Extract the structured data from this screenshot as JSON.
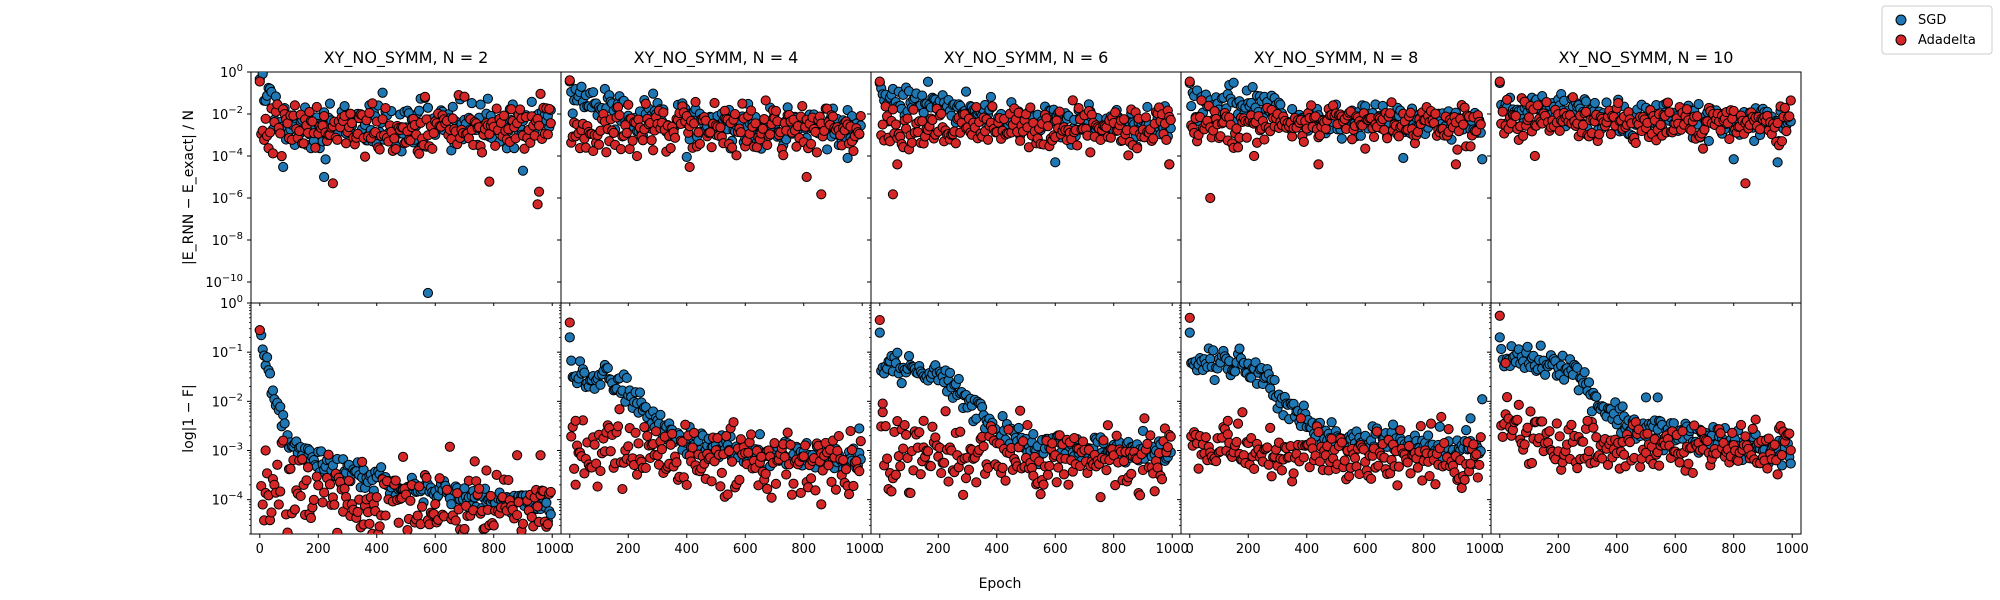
{
  "figure": {
    "xlabel": "Epoch",
    "legend": {
      "placement": "top-right",
      "items": [
        {
          "name": "SGD",
          "color": "#1f77b4"
        },
        {
          "name": "Adadelta",
          "color": "#d62728"
        }
      ]
    }
  },
  "chart_data": [
    {
      "type": "scatter",
      "title": "XY_NO_SYMM, N = 2",
      "row": "energy_error",
      "ylabel": "|E_RNN − E_exact| / N",
      "yscale": "log",
      "ylim": [
        1e-11,
        1
      ],
      "xlim": [
        -30,
        1030
      ],
      "x_ticks": [
        "0",
        "200",
        "400",
        "600",
        "800",
        "1000"
      ],
      "y_ticks": [
        "10^0",
        "10^-2",
        "10^-4",
        "10^-6",
        "10^-8",
        "10^-10"
      ],
      "series": [
        {
          "name": "SGD",
          "color": "#1f77b4",
          "start": 0.45,
          "trend": [
            [
              0,
              0.45
            ],
            [
              60,
              0.008
            ],
            [
              150,
              0.003
            ],
            [
              1000,
              0.003
            ]
          ],
          "scatter": 1.2,
          "outliers": [
            [
              575,
              3e-11
            ],
            [
              220,
              1e-05
            ],
            [
              80,
              3e-05
            ],
            [
              900,
              2e-05
            ]
          ]
        },
        {
          "name": "Adadelta",
          "color": "#d62728",
          "start": 0.35,
          "trend": [
            [
              0,
              0.0008
            ],
            [
              100,
              0.002
            ],
            [
              1000,
              0.002
            ]
          ],
          "scatter": 1.2,
          "outliers": [
            [
              250,
              5e-06
            ],
            [
              785,
              6e-06
            ],
            [
              955,
              2e-06
            ],
            [
              950,
              5e-07
            ]
          ]
        }
      ]
    },
    {
      "type": "scatter",
      "title": "XY_NO_SYMM, N = 4",
      "row": "energy_error",
      "yscale": "log",
      "ylim": [
        1e-11,
        1
      ],
      "xlim": [
        -30,
        1030
      ],
      "x_ticks": [
        "0",
        "200",
        "400",
        "600",
        "800",
        "1000"
      ],
      "series": [
        {
          "name": "SGD",
          "color": "#1f77b4",
          "start": 0.35,
          "trend": [
            [
              0,
              0.06
            ],
            [
              150,
              0.02
            ],
            [
              300,
              0.005
            ],
            [
              1000,
              0.002
            ]
          ],
          "scatter": 1.0,
          "outliers": [
            [
              400,
              9e-05
            ],
            [
              950,
              8e-05
            ]
          ]
        },
        {
          "name": "Adadelta",
          "color": "#d62728",
          "start": 0.4,
          "trend": [
            [
              0,
              0.002
            ],
            [
              1000,
              0.002
            ]
          ],
          "scatter": 1.1,
          "outliers": [
            [
              410,
              3e-05
            ],
            [
              810,
              1e-05
            ],
            [
              860,
              1.5e-06
            ]
          ]
        }
      ]
    },
    {
      "type": "scatter",
      "title": "XY_NO_SYMM, N = 6",
      "row": "energy_error",
      "yscale": "log",
      "ylim": [
        1e-11,
        1
      ],
      "xlim": [
        -30,
        1030
      ],
      "x_ticks": [
        "0",
        "200",
        "400",
        "600",
        "800",
        "1000"
      ],
      "series": [
        {
          "name": "SGD",
          "color": "#1f77b4",
          "start": 0.3,
          "trend": [
            [
              0,
              0.05
            ],
            [
              250,
              0.03
            ],
            [
              400,
              0.006
            ],
            [
              1000,
              0.002
            ]
          ],
          "scatter": 0.9,
          "outliers": [
            [
              600,
              5e-05
            ],
            [
              990,
              4e-05
            ]
          ]
        },
        {
          "name": "Adadelta",
          "color": "#d62728",
          "start": 0.35,
          "trend": [
            [
              0,
              0.002
            ],
            [
              1000,
              0.002
            ]
          ],
          "scatter": 1.0,
          "outliers": [
            [
              45,
              1.5e-06
            ],
            [
              60,
              4e-05
            ],
            [
              990,
              4e-05
            ]
          ]
        }
      ]
    },
    {
      "type": "scatter",
      "title": "XY_NO_SYMM, N = 8",
      "row": "energy_error",
      "yscale": "log",
      "ylim": [
        1e-11,
        1
      ],
      "xlim": [
        -30,
        1030
      ],
      "x_ticks": [
        "0",
        "200",
        "400",
        "600",
        "800",
        "1000"
      ],
      "series": [
        {
          "name": "SGD",
          "color": "#1f77b4",
          "start": 0.3,
          "trend": [
            [
              0,
              0.03
            ],
            [
              250,
              0.03
            ],
            [
              400,
              0.006
            ],
            [
              1000,
              0.003
            ]
          ],
          "scatter": 0.8,
          "outliers": [
            [
              730,
              8e-05
            ],
            [
              1000,
              7e-05
            ]
          ]
        },
        {
          "name": "Adadelta",
          "color": "#d62728",
          "start": 0.35,
          "trend": [
            [
              0,
              0.003
            ],
            [
              1000,
              0.003
            ]
          ],
          "scatter": 0.9,
          "outliers": [
            [
              70,
              1e-06
            ],
            [
              220,
              0.0001
            ],
            [
              440,
              4e-05
            ],
            [
              910,
              4e-05
            ]
          ]
        }
      ]
    },
    {
      "type": "scatter",
      "title": "XY_NO_SYMM, N = 10",
      "row": "energy_error",
      "yscale": "log",
      "ylim": [
        1e-11,
        1
      ],
      "xlim": [
        -30,
        1030
      ],
      "x_ticks": [
        "0",
        "200",
        "400",
        "600",
        "800",
        "1000"
      ],
      "series": [
        {
          "name": "SGD",
          "color": "#1f77b4",
          "start": 0.3,
          "trend": [
            [
              0,
              0.02
            ],
            [
              250,
              0.02
            ],
            [
              400,
              0.006
            ],
            [
              1000,
              0.003
            ]
          ],
          "scatter": 0.8,
          "outliers": [
            [
              800,
              7e-05
            ],
            [
              950,
              5e-05
            ]
          ]
        },
        {
          "name": "Adadelta",
          "color": "#d62728",
          "start": 0.35,
          "trend": [
            [
              0,
              0.005
            ],
            [
              1000,
              0.003
            ]
          ],
          "scatter": 0.9,
          "outliers": [
            [
              840,
              5e-06
            ],
            [
              120,
              0.0001
            ]
          ]
        }
      ]
    },
    {
      "type": "scatter",
      "title": "",
      "row": "fidelity",
      "ylabel": "log|1 − F|",
      "yscale": "log",
      "ylim": [
        2e-05,
        1
      ],
      "xlim": [
        -30,
        1030
      ],
      "x_ticks": [
        "0",
        "200",
        "400",
        "600",
        "800",
        "1000"
      ],
      "y_ticks": [
        "10^0",
        "10^-1",
        "10^-2",
        "10^-3",
        "10^-4"
      ],
      "series": [
        {
          "name": "SGD",
          "color": "#1f77b4",
          "start": 0.28,
          "trend": [
            [
              5,
              0.17
            ],
            [
              20,
              0.06
            ],
            [
              50,
              0.01
            ],
            [
              100,
              0.0015
            ],
            [
              200,
              0.0006
            ],
            [
              400,
              0.00025
            ],
            [
              700,
              0.00012
            ],
            [
              1000,
              6e-05
            ]
          ],
          "scatter": 0.25,
          "outliers": []
        },
        {
          "name": "Adadelta",
          "color": "#d62728",
          "start": 0.28,
          "trend": [
            [
              0,
              0.00015
            ],
            [
              400,
              8e-05
            ],
            [
              1000,
              5e-05
            ]
          ],
          "scatter": 0.9,
          "outliers": [
            [
              20,
              0.001
            ],
            [
              960,
              0.0008
            ],
            [
              880,
              0.0008
            ]
          ]
        }
      ]
    },
    {
      "type": "scatter",
      "title": "",
      "row": "fidelity",
      "yscale": "log",
      "ylim": [
        2e-05,
        1
      ],
      "xlim": [
        -30,
        1030
      ],
      "x_ticks": [
        "0",
        "200",
        "400",
        "600",
        "800",
        "1000"
      ],
      "series": [
        {
          "name": "SGD",
          "color": "#1f77b4",
          "start": 0.2,
          "trend": [
            [
              5,
              0.04
            ],
            [
              100,
              0.03
            ],
            [
              180,
              0.02
            ],
            [
              280,
              0.005
            ],
            [
              380,
              0.0015
            ],
            [
              600,
              0.001
            ],
            [
              1000,
              0.0007
            ]
          ],
          "scatter": 0.3,
          "outliers": [
            [
              990,
              0.0028
            ],
            [
              410,
              0.003
            ]
          ]
        },
        {
          "name": "Adadelta",
          "color": "#d62728",
          "start": 0.4,
          "trend": [
            [
              0,
              0.001
            ],
            [
              1000,
              0.0005
            ]
          ],
          "scatter": 0.7,
          "outliers": [
            [
              20,
              0.004
            ],
            [
              860,
              8e-05
            ]
          ]
        }
      ]
    },
    {
      "type": "scatter",
      "title": "",
      "row": "fidelity",
      "yscale": "log",
      "ylim": [
        2e-05,
        1
      ],
      "xlim": [
        -30,
        1030
      ],
      "x_ticks": [
        "0",
        "200",
        "400",
        "600",
        "800",
        "1000"
      ],
      "series": [
        {
          "name": "SGD",
          "color": "#1f77b4",
          "start": 0.25,
          "trend": [
            [
              5,
              0.055
            ],
            [
              150,
              0.045
            ],
            [
              230,
              0.03
            ],
            [
              330,
              0.006
            ],
            [
              450,
              0.0015
            ],
            [
              700,
              0.001
            ],
            [
              1000,
              0.0009
            ]
          ],
          "scatter": 0.3,
          "outliers": [
            [
              900,
              0.0025
            ],
            [
              420,
              0.005
            ]
          ]
        },
        {
          "name": "Adadelta",
          "color": "#d62728",
          "start": 0.45,
          "trend": [
            [
              0,
              0.001
            ],
            [
              1000,
              0.0005
            ]
          ],
          "scatter": 0.7,
          "outliers": [
            [
              10,
              0.009
            ],
            [
              150,
              0.004
            ]
          ]
        }
      ]
    },
    {
      "type": "scatter",
      "title": "",
      "row": "fidelity",
      "yscale": "log",
      "ylim": [
        2e-05,
        1
      ],
      "xlim": [
        -30,
        1030
      ],
      "x_ticks": [
        "0",
        "200",
        "400",
        "600",
        "800",
        "1000"
      ],
      "series": [
        {
          "name": "SGD",
          "color": "#1f77b4",
          "start": 0.25,
          "trend": [
            [
              5,
              0.065
            ],
            [
              200,
              0.06
            ],
            [
              260,
              0.035
            ],
            [
              340,
              0.008
            ],
            [
              450,
              0.002
            ],
            [
              700,
              0.0015
            ],
            [
              1000,
              0.001
            ]
          ],
          "scatter": 0.3,
          "outliers": [
            [
              1000,
              0.011
            ],
            [
              960,
              0.0045
            ]
          ]
        },
        {
          "name": "Adadelta",
          "color": "#d62728",
          "start": 0.5,
          "trend": [
            [
              0,
              0.002
            ],
            [
              200,
              0.0009
            ],
            [
              1000,
              0.0007
            ]
          ],
          "scatter": 0.6,
          "outliers": [
            [
              180,
              0.006
            ],
            [
              130,
              0.004
            ]
          ]
        }
      ]
    },
    {
      "type": "scatter",
      "title": "",
      "row": "fidelity",
      "yscale": "log",
      "ylim": [
        2e-05,
        1
      ],
      "xlim": [
        -30,
        1030
      ],
      "x_ticks": [
        "0",
        "200",
        "400",
        "600",
        "800",
        "1000"
      ],
      "series": [
        {
          "name": "SGD",
          "color": "#1f77b4",
          "start": 0.2,
          "trend": [
            [
              5,
              0.07
            ],
            [
              200,
              0.065
            ],
            [
              260,
              0.04
            ],
            [
              350,
              0.008
            ],
            [
              460,
              0.003
            ],
            [
              700,
              0.0018
            ],
            [
              1000,
              0.0009
            ]
          ],
          "scatter": 0.3,
          "outliers": [
            [
              540,
              0.012
            ],
            [
              500,
              0.012
            ]
          ]
        },
        {
          "name": "Adadelta",
          "color": "#d62728",
          "start": 0.55,
          "trend": [
            [
              0,
              0.004
            ],
            [
              200,
              0.0012
            ],
            [
              1000,
              0.0012
            ]
          ],
          "scatter": 0.5,
          "outliers": [
            [
              20,
              0.06
            ],
            [
              300,
              0.004
            ]
          ]
        }
      ]
    }
  ]
}
